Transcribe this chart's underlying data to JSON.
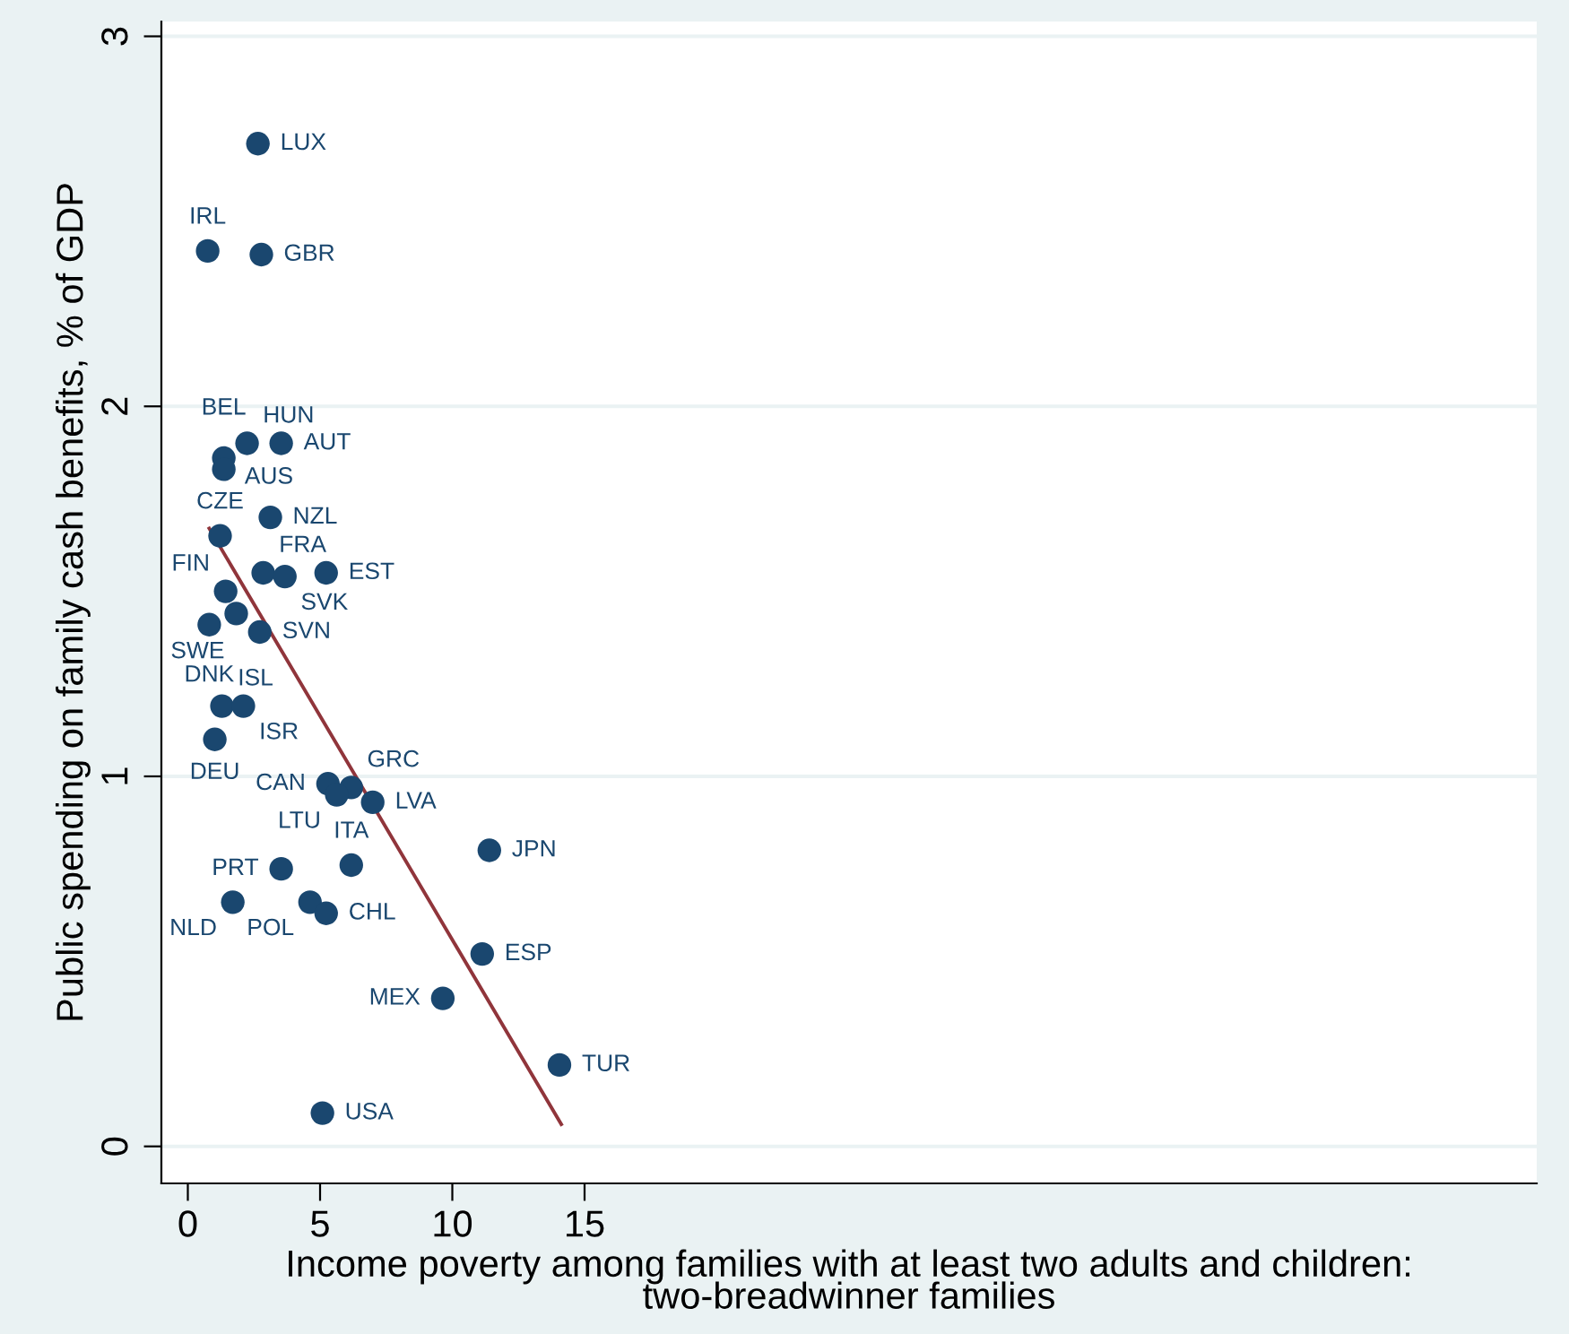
{
  "chart_data": {
    "type": "scatter",
    "xlabel": "Income poverty among families with at least two adults and children:\ntwo-breadwinner families",
    "ylabel": "Public spending on family cash benefits, % of GDP",
    "xlim": [
      -1,
      51
    ],
    "ylim": [
      -0.1,
      3.04
    ],
    "xticks": [
      0,
      5,
      10,
      15
    ],
    "yticks": [
      0,
      1,
      2,
      3
    ],
    "grid": "y",
    "series": [
      {
        "marker": "circle",
        "color": "#1a476f",
        "x": [
          2.65,
          0.75,
          2.78,
          2.24,
          3.53,
          1.36,
          1.36,
          3.12,
          1.22,
          2.85,
          3.67,
          5.23,
          1.43,
          1.83,
          0.81,
          2.72,
          1.29,
          2.1,
          1.02,
          5.3,
          6.18,
          5.63,
          6.99,
          11.4,
          3.53,
          6.18,
          1.7,
          4.62,
          5.23,
          11.13,
          9.64,
          14.05,
          5.09
        ],
        "values": [
          2.71,
          2.42,
          2.41,
          1.9,
          1.9,
          1.86,
          1.83,
          1.7,
          1.65,
          1.55,
          1.54,
          1.55,
          1.5,
          1.44,
          1.41,
          1.39,
          1.19,
          1.19,
          1.1,
          0.98,
          0.97,
          0.95,
          0.93,
          0.8,
          0.75,
          0.76,
          0.66,
          0.66,
          0.63,
          0.52,
          0.4,
          0.22,
          0.09
        ],
        "value_labels": [
          "LUX",
          "IRL",
          "GBR",
          "HUN",
          "AUT",
          "AUS",
          "BEL",
          "NZL",
          "CZE",
          "FRA",
          "SVK",
          "EST",
          "FIN",
          "SWE",
          "DNK",
          "SVN",
          "ISL",
          "ISR",
          "DEU",
          "CAN",
          "GRC",
          "LTU",
          "LVA",
          "JPN",
          "PRT",
          "ITA",
          "NLD",
          "POL",
          "CHL",
          "ESP",
          "MEX",
          "TUR",
          "USA"
        ]
      },
      {
        "type": "line",
        "color": "#90353b",
        "x": [
          0.81,
          14.12
        ],
        "values": [
          1.67,
          0.06
        ]
      }
    ]
  }
}
